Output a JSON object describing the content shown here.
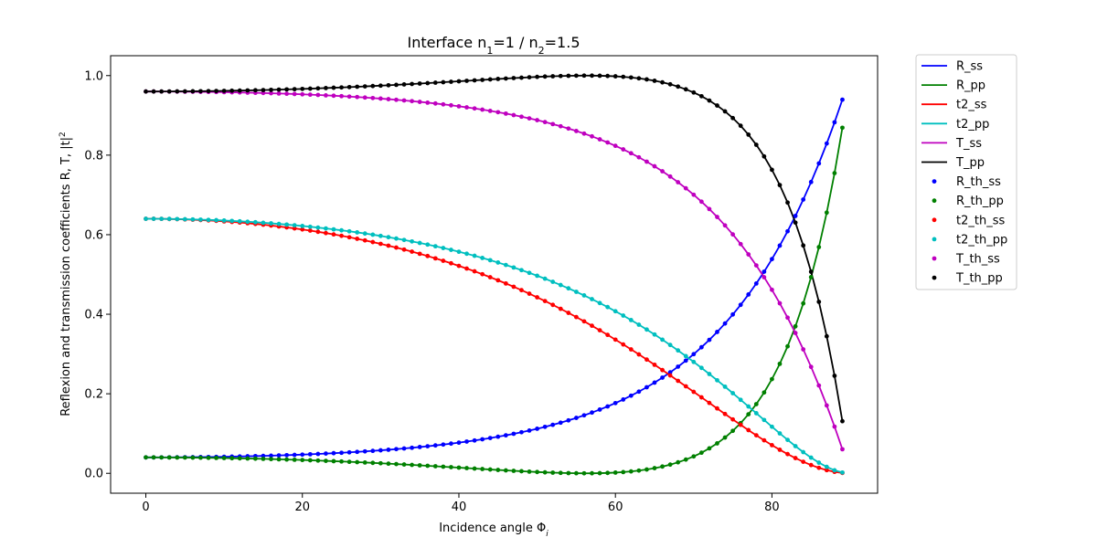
{
  "chart_data": {
    "type": "line",
    "title_prefix": "Interface n",
    "title_sub1": "1",
    "title_mid": "=1 / n",
    "title_sub2": "2",
    "title_suffix": "=1.5",
    "xlabel_prefix": "Incidence angle Φ",
    "xlabel_sub": "i",
    "ylabel": "Reflexion and transmission coefficients R, T, |t|",
    "ylabel_sup": "2",
    "xlim": [
      -4.5,
      93.5
    ],
    "ylim": [
      -0.05,
      1.05
    ],
    "xticks": [
      0,
      20,
      40,
      60,
      80
    ],
    "xtick_labels": [
      "0",
      "20",
      "40",
      "60",
      "80"
    ],
    "yticks": [
      0.0,
      0.2,
      0.4,
      0.6,
      0.8,
      1.0
    ],
    "ytick_labels": [
      "0.0",
      "0.2",
      "0.4",
      "0.6",
      "0.8",
      "1.0"
    ],
    "grid": false,
    "legend_position": "outside-top-right",
    "x_range": {
      "start": 0,
      "end": 89,
      "step": 1
    },
    "model": {
      "n1": 1,
      "n2": 1.5
    },
    "series": [
      {
        "name": "R_ss",
        "key": "R_ss",
        "style": "line",
        "color": "#0000ff"
      },
      {
        "name": "R_pp",
        "key": "R_pp",
        "style": "line",
        "color": "#008000"
      },
      {
        "name": "t2_ss",
        "key": "t2_ss",
        "style": "line",
        "color": "#ff0000"
      },
      {
        "name": "t2_pp",
        "key": "t2_pp",
        "style": "line",
        "color": "#00bfbf"
      },
      {
        "name": "T_ss",
        "key": "T_ss",
        "style": "line",
        "color": "#bf00bf"
      },
      {
        "name": "T_pp",
        "key": "T_pp",
        "style": "line",
        "color": "#000000"
      },
      {
        "name": "R_th_ss",
        "key": "R_ss",
        "style": "marker",
        "color": "#0000ff"
      },
      {
        "name": "R_th_pp",
        "key": "R_pp",
        "style": "marker",
        "color": "#008000"
      },
      {
        "name": "t2_th_ss",
        "key": "t2_ss",
        "style": "marker",
        "color": "#ff0000"
      },
      {
        "name": "t2_th_pp",
        "key": "t2_pp",
        "style": "marker",
        "color": "#00bfbf"
      },
      {
        "name": "T_th_ss",
        "key": "T_ss",
        "style": "marker",
        "color": "#bf00bf"
      },
      {
        "name": "T_th_pp",
        "key": "T_pp",
        "style": "marker",
        "color": "#000000"
      }
    ]
  }
}
